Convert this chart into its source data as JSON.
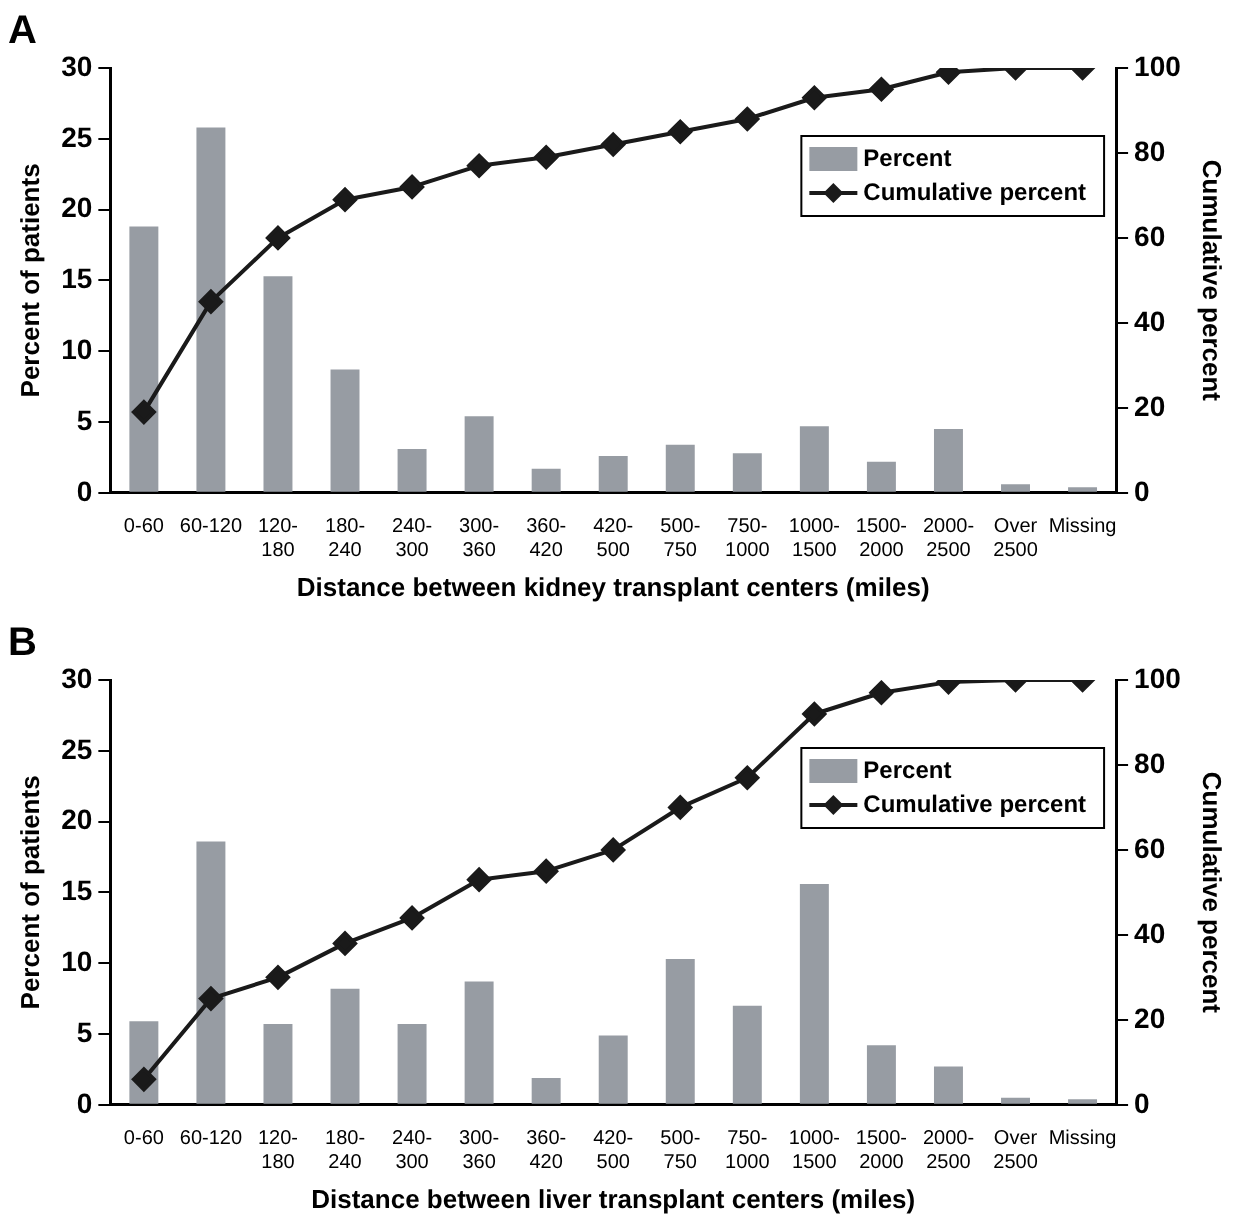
{
  "chart_data": [
    {
      "type": "bar",
      "title": "A",
      "xlabel": "Distance between kidney transplant centers (miles)",
      "ylabel": "Percent of patients",
      "y2label": "Cumulative percent",
      "categories": [
        "0-60",
        "60-120",
        "120-180",
        "180-240",
        "240-300",
        "300-360",
        "360-420",
        "420-500",
        "500-750",
        "750-1000",
        "1000-1500",
        "1500-2000",
        "2000-2500",
        "Over 2500",
        "Missing"
      ],
      "series": [
        {
          "name": "Percent",
          "color": "#979ca3",
          "values": [
            18.8,
            25.8,
            15.3,
            8.7,
            3.1,
            5.4,
            1.7,
            2.6,
            3.4,
            2.8,
            4.7,
            2.2,
            4.5,
            0.6,
            0.4
          ]
        },
        {
          "name": "Cumulative percent",
          "type": "line",
          "axis": "y2",
          "color": "#1a1a1a",
          "values": [
            19,
            45,
            60,
            69,
            72,
            77,
            79,
            82,
            85,
            88,
            93,
            95,
            99,
            100,
            100
          ]
        }
      ],
      "ylim": [
        0,
        30
      ],
      "yticks": [
        0,
        5,
        10,
        15,
        20,
        25,
        30
      ],
      "y2lim": [
        0,
        100
      ],
      "y2ticks": [
        0,
        20,
        40,
        60,
        80,
        100
      ],
      "grid": false,
      "legend": "top right",
      "marker": "diamond",
      "line_style": "solid"
    },
    {
      "type": "bar",
      "title": "B",
      "xlabel": "Distance between liver transplant centers (miles)",
      "ylabel": "Percent of patients",
      "y2label": "Cumulative percent",
      "categories": [
        "0-60",
        "60-120",
        "120-180",
        "180-240",
        "240-300",
        "300-360",
        "360-420",
        "420-500",
        "500-750",
        "750-1000",
        "1000-1500",
        "1500-2000",
        "2000-2500",
        "Over 2500",
        "Missing"
      ],
      "series": [
        {
          "name": "Percent",
          "color": "#979ca3",
          "values": [
            5.9,
            18.6,
            5.7,
            8.2,
            5.7,
            8.7,
            1.9,
            4.9,
            10.3,
            7.0,
            15.6,
            4.2,
            2.7,
            0.5,
            0.4
          ]
        },
        {
          "name": "Cumulative percent",
          "type": "line",
          "axis": "y2",
          "color": "#1a1a1a",
          "values": [
            6,
            25,
            30,
            38,
            44,
            53,
            55,
            60,
            70,
            77,
            92,
            97,
            99.5,
            100,
            100
          ]
        }
      ],
      "ylim": [
        0,
        30
      ],
      "yticks": [
        0,
        5,
        10,
        15,
        20,
        25,
        30
      ],
      "y2lim": [
        0,
        100
      ],
      "y2ticks": [
        0,
        20,
        40,
        60,
        80,
        100
      ],
      "grid": false,
      "legend": "top right",
      "marker": "diamond",
      "line_style": "solid"
    }
  ]
}
